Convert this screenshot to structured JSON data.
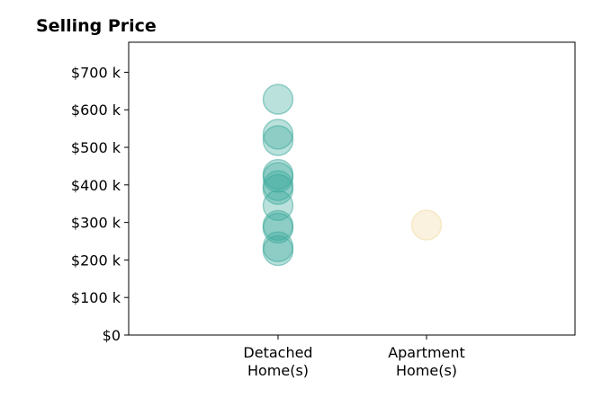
{
  "chart_data": {
    "type": "scatter",
    "title": "Selling Price",
    "xlabel": "",
    "ylabel": "",
    "categories": [
      "Detached\nHome(s)",
      "Apartment\nHome(s)"
    ],
    "ylim": [
      0,
      780000
    ],
    "yticks": [
      {
        "value": 0,
        "label": "$0"
      },
      {
        "value": 100000,
        "label": "$100 k"
      },
      {
        "value": 200000,
        "label": "$200 k"
      },
      {
        "value": 300000,
        "label": "$300 k"
      },
      {
        "value": 400000,
        "label": "$400 k"
      },
      {
        "value": 500000,
        "label": "$500 k"
      },
      {
        "value": 600000,
        "label": "$600 k"
      },
      {
        "value": 700000,
        "label": "$700 k"
      }
    ],
    "grid": false,
    "series": [
      {
        "category": "Detached\nHome(s)",
        "color": "#3aa89a",
        "values": [
          628000,
          535000,
          518000,
          428000,
          420000,
          398000,
          388000,
          345000,
          292000,
          285000,
          235000,
          225000
        ]
      },
      {
        "category": "Apartment\nHome(s)",
        "color": "#f0d9a0",
        "values": [
          293000
        ]
      }
    ]
  }
}
